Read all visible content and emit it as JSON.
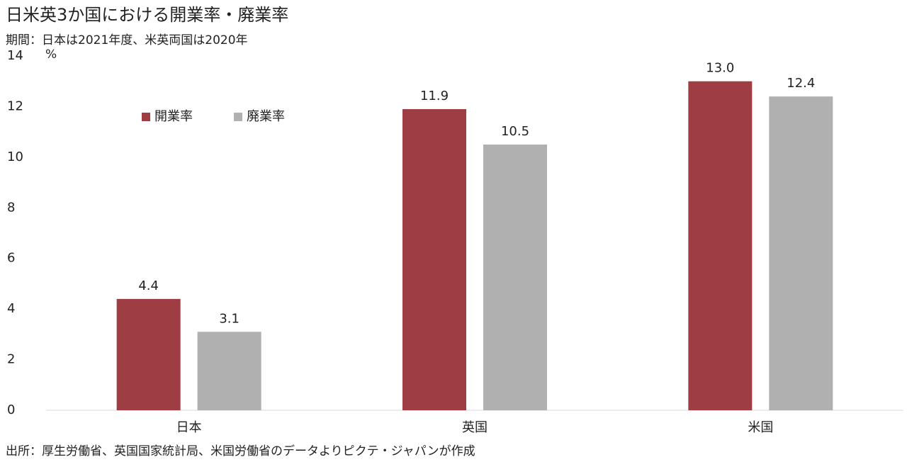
{
  "chart_data": {
    "type": "bar",
    "title": "日米英3か国における開業率・廃業率",
    "subtitle": "期間：日本は2021年度、米英両国は2020年",
    "y_label": "%",
    "source": "出所：厚生労働省、英国国家統計局、米国労働省のデータよりピクテ・ジャパンが作成",
    "categories": [
      "日本",
      "英国",
      "米国"
    ],
    "series": [
      {
        "name": "開業率",
        "color": "#9e3d44",
        "values": [
          4.4,
          11.9,
          13.0
        ],
        "value_labels": [
          "4.4",
          "11.9",
          "13.0"
        ]
      },
      {
        "name": "廃業率",
        "color": "#b0b0b0",
        "values": [
          3.1,
          10.5,
          12.4
        ],
        "value_labels": [
          "3.1",
          "10.5",
          "12.4"
        ]
      }
    ],
    "ylim": [
      0,
      14
    ],
    "yticks": [
      0,
      2,
      4,
      6,
      8,
      10,
      12,
      14
    ],
    "grid": false,
    "legend": "top-left"
  }
}
